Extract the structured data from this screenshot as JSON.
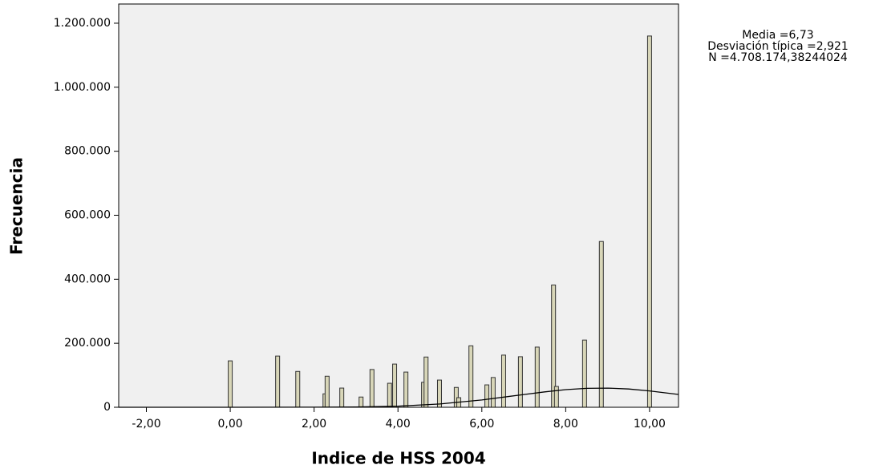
{
  "chart_data": {
    "type": "histogram",
    "x_label": "Indice de HSS 2004",
    "y_label": "Frecuencia",
    "annotations": [
      "Media =6,73",
      "Desviación típica =2,921",
      "N =4.708.174,38244024"
    ],
    "x": [
      0.0,
      1.13,
      1.61,
      2.26,
      2.31,
      2.66,
      3.12,
      3.38,
      3.8,
      3.92,
      4.19,
      4.61,
      4.67,
      4.99,
      5.39,
      5.45,
      5.74,
      6.12,
      6.27,
      6.52,
      6.92,
      7.32,
      7.71,
      7.78,
      8.45,
      8.85,
      10.0
    ],
    "values": [
      145000,
      160000,
      112000,
      42000,
      97000,
      60000,
      32000,
      118000,
      75000,
      135000,
      110000,
      78000,
      157000,
      85000,
      62000,
      30000,
      192000,
      70000,
      93000,
      163000,
      158000,
      188000,
      382000,
      65000,
      210000,
      518000,
      1160000
    ],
    "color": "#d8d6b8",
    "curve": {
      "x": [
        -2.66,
        0,
        2,
        3,
        4,
        5,
        6,
        7,
        7.5,
        8,
        8.5,
        9,
        9.5,
        10,
        10.69
      ],
      "values": [
        0,
        0,
        220,
        1000,
        3600,
        10200,
        22700,
        39900,
        48100,
        55000,
        59100,
        59800,
        57000,
        51200,
        40000
      ]
    },
    "xlim": [
      -2.66,
      10.69
    ],
    "ylim": [
      0,
      1260000
    ],
    "xticks": [
      {
        "value": -2,
        "label": "-2,00"
      },
      {
        "value": 0,
        "label": "0,00"
      },
      {
        "value": 2,
        "label": "2,00"
      },
      {
        "value": 4,
        "label": "4,00"
      },
      {
        "value": 6,
        "label": "6,00"
      },
      {
        "value": 8,
        "label": "8,00"
      },
      {
        "value": 10,
        "label": "10,00"
      }
    ],
    "yticks": [
      0,
      {
        "value": 200000,
        "label": "200.000"
      },
      {
        "value": 400000,
        "label": "400.000"
      },
      {
        "value": 600000,
        "label": "600.000"
      },
      {
        "value": 800000,
        "label": "800.000"
      },
      {
        "value": 1000000,
        "label": "1.000.000"
      },
      {
        "value": 1200000,
        "label": "1.200.000"
      }
    ]
  }
}
